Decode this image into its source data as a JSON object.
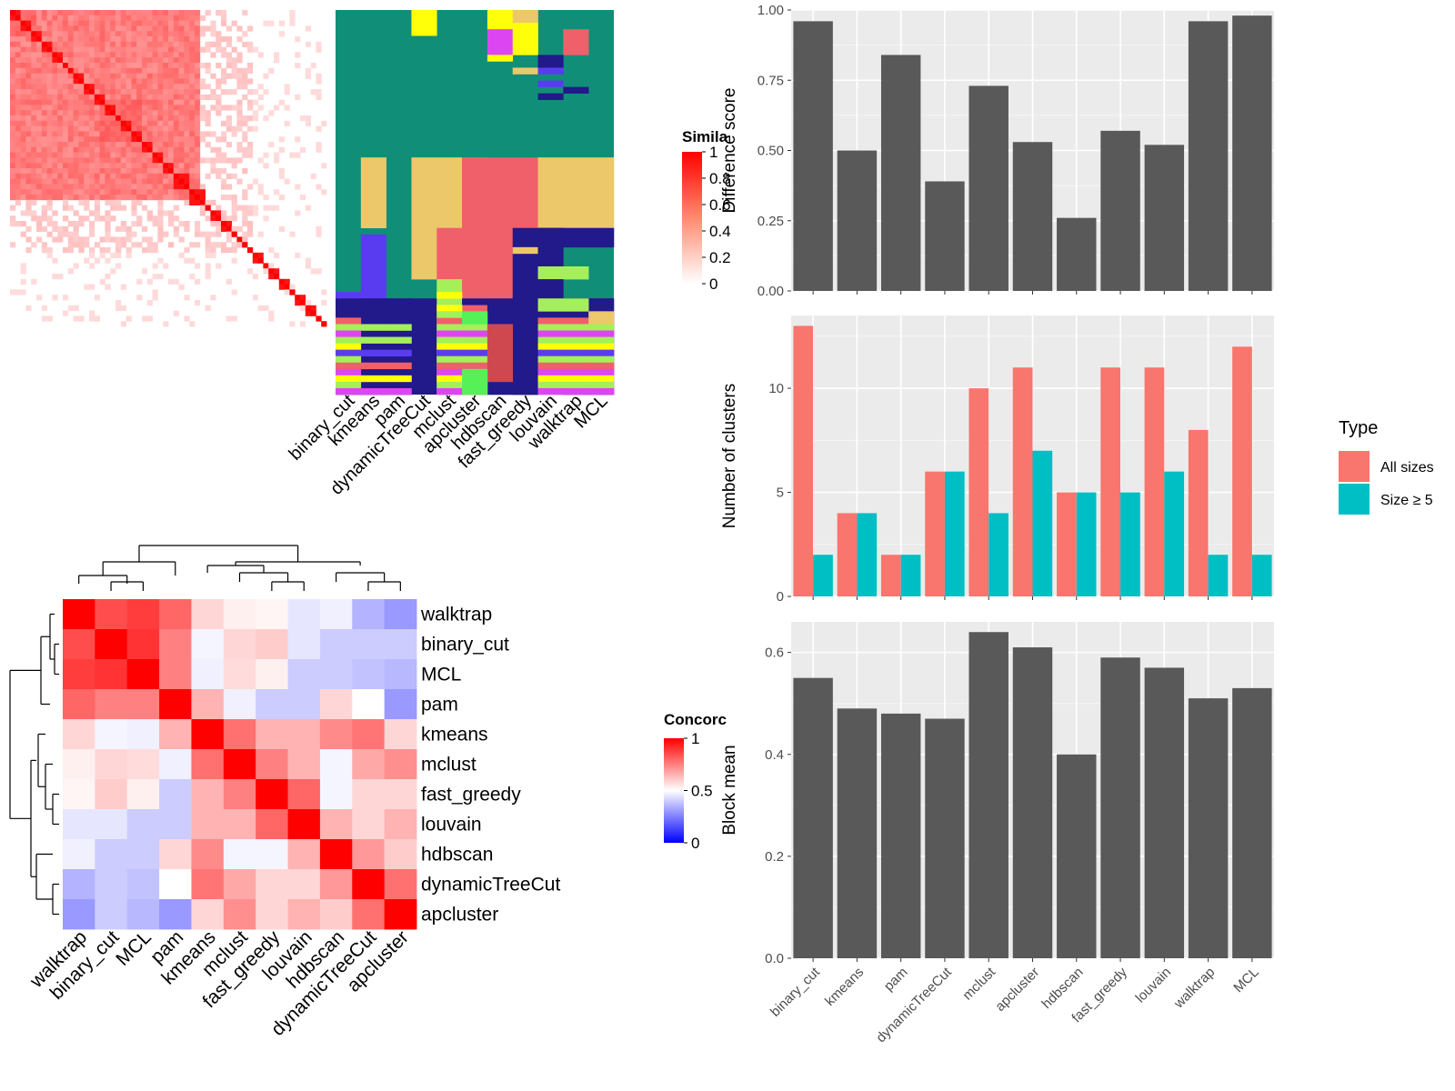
{
  "methods": [
    "binary_cut",
    "kmeans",
    "pam",
    "dynamicTreeCut",
    "mclust",
    "apcluster",
    "hdbscan",
    "fast_greedy",
    "louvain",
    "walktrap",
    "MCL"
  ],
  "similarity_legend": {
    "title": "Simila",
    "ticks": [
      "1",
      "0.8",
      "0.6",
      "0.4",
      "0.2",
      "0"
    ],
    "color_high": "#ff0000",
    "color_low": "#ffffff"
  },
  "concordance_legend": {
    "title": "Concorc",
    "ticks": [
      "1",
      "0.5",
      "0"
    ],
    "color_high": "#ff0000",
    "color_mid": "#ffffff",
    "color_low": "#0000ff"
  },
  "type_legend": {
    "title": "Type",
    "items": [
      {
        "label": "All sizes",
        "color": "#f8766d"
      },
      {
        "label": "Size ≥ 5",
        "color": "#00bfc4"
      }
    ]
  },
  "cluster_palette": [
    "#118e78",
    "#22198a",
    "#ecc86a",
    "#f0606a",
    "#a5ef5a",
    "#5a3cf0",
    "#ffff0a",
    "#e846c8",
    "#dc46f2",
    "#56f156",
    "#cf4850",
    "#2c2cc0"
  ],
  "chart_data": [
    {
      "type": "heatmap",
      "name": "similarity-matrix",
      "block_sizes": [
        2,
        2,
        2,
        2,
        2,
        1,
        1,
        2,
        2,
        2,
        2,
        1,
        2,
        2,
        2,
        2,
        2,
        3,
        3,
        1,
        2,
        2,
        1,
        1,
        1,
        1,
        2,
        1,
        2,
        2,
        1,
        2,
        2,
        1,
        2,
        1,
        2,
        1,
        2,
        1,
        1,
        2,
        2,
        1,
        1,
        1,
        2,
        1,
        2,
        1,
        1,
        1,
        1,
        1,
        1,
        1,
        1,
        1,
        1,
        1
      ],
      "value_range": [
        0,
        1
      ]
    },
    {
      "type": "heatmap",
      "name": "cluster-membership",
      "columns": [
        "binary_cut",
        "kmeans",
        "pam",
        "dynamicTreeCut",
        "mclust",
        "apcluster",
        "hdbscan",
        "fast_greedy",
        "louvain",
        "walktrap",
        "MCL"
      ]
    },
    {
      "type": "heatmap",
      "name": "concordance-matrix",
      "rows": [
        "walktrap",
        "binary_cut",
        "MCL",
        "pam",
        "kmeans",
        "mclust",
        "fast_greedy",
        "louvain",
        "hdbscan",
        "dynamicTreeCut",
        "apcluster"
      ],
      "columns": [
        "walktrap",
        "binary_cut",
        "MCL",
        "pam",
        "kmeans",
        "mclust",
        "fast_greedy",
        "louvain",
        "hdbscan",
        "dynamicTreeCut",
        "apcluster"
      ],
      "values": [
        [
          1.0,
          0.85,
          0.88,
          0.8,
          0.58,
          0.53,
          0.52,
          0.45,
          0.47,
          0.35,
          0.3
        ],
        [
          0.85,
          1.0,
          0.9,
          0.75,
          0.48,
          0.58,
          0.6,
          0.45,
          0.4,
          0.4,
          0.4
        ],
        [
          0.88,
          0.9,
          1.0,
          0.75,
          0.47,
          0.57,
          0.53,
          0.4,
          0.4,
          0.38,
          0.36
        ],
        [
          0.8,
          0.75,
          0.75,
          1.0,
          0.65,
          0.47,
          0.4,
          0.4,
          0.58,
          0.5,
          0.3
        ],
        [
          0.58,
          0.48,
          0.47,
          0.65,
          1.0,
          0.78,
          0.65,
          0.65,
          0.73,
          0.77,
          0.58
        ],
        [
          0.53,
          0.58,
          0.57,
          0.47,
          0.78,
          1.0,
          0.75,
          0.65,
          0.48,
          0.67,
          0.72
        ],
        [
          0.52,
          0.6,
          0.53,
          0.4,
          0.65,
          0.75,
          1.0,
          0.8,
          0.48,
          0.58,
          0.58
        ],
        [
          0.45,
          0.45,
          0.4,
          0.4,
          0.65,
          0.65,
          0.8,
          1.0,
          0.65,
          0.58,
          0.65
        ],
        [
          0.47,
          0.4,
          0.4,
          0.58,
          0.73,
          0.48,
          0.48,
          0.65,
          1.0,
          0.7,
          0.6
        ],
        [
          0.35,
          0.4,
          0.38,
          0.5,
          0.77,
          0.67,
          0.58,
          0.58,
          0.7,
          1.0,
          0.78
        ],
        [
          0.3,
          0.4,
          0.36,
          0.3,
          0.58,
          0.72,
          0.58,
          0.65,
          0.6,
          0.78,
          1.0
        ]
      ],
      "value_range": [
        0,
        1
      ]
    },
    {
      "type": "bar",
      "name": "difference-score",
      "categories": [
        "binary_cut",
        "kmeans",
        "pam",
        "dynamicTreeCut",
        "mclust",
        "apcluster",
        "hdbscan",
        "fast_greedy",
        "louvain",
        "walktrap",
        "MCL"
      ],
      "values": [
        0.96,
        0.5,
        0.84,
        0.39,
        0.73,
        0.53,
        0.26,
        0.57,
        0.52,
        0.96,
        0.98
      ],
      "ylabel": "Difference score",
      "ylim": [
        0,
        1.0
      ],
      "yticks": [
        "0.00",
        "0.25",
        "0.50",
        "0.75",
        "1.00"
      ],
      "grid": true
    },
    {
      "type": "bar",
      "name": "number-of-clusters",
      "categories": [
        "binary_cut",
        "kmeans",
        "pam",
        "dynamicTreeCut",
        "mclust",
        "apcluster",
        "hdbscan",
        "fast_greedy",
        "louvain",
        "walktrap",
        "MCL"
      ],
      "series": [
        {
          "name": "All sizes",
          "values": [
            13,
            4,
            2,
            6,
            10,
            11,
            5,
            11,
            11,
            8,
            12
          ]
        },
        {
          "name": "Size ≥ 5",
          "values": [
            2,
            4,
            2,
            6,
            4,
            7,
            5,
            5,
            6,
            2,
            2
          ]
        }
      ],
      "ylabel": "Number of clusters",
      "ylim": [
        0,
        13.5
      ],
      "yticks": [
        "0",
        "5",
        "10"
      ],
      "grid": true
    },
    {
      "type": "bar",
      "name": "block-mean",
      "categories": [
        "binary_cut",
        "kmeans",
        "pam",
        "dynamicTreeCut",
        "mclust",
        "apcluster",
        "hdbscan",
        "fast_greedy",
        "louvain",
        "walktrap",
        "MCL"
      ],
      "values": [
        0.55,
        0.49,
        0.48,
        0.47,
        0.64,
        0.61,
        0.4,
        0.59,
        0.57,
        0.51,
        0.53
      ],
      "ylabel": "Block mean",
      "ylim": [
        0,
        0.66
      ],
      "yticks": [
        "0.0",
        "0.2",
        "0.4",
        "0.6"
      ],
      "grid": true
    }
  ]
}
